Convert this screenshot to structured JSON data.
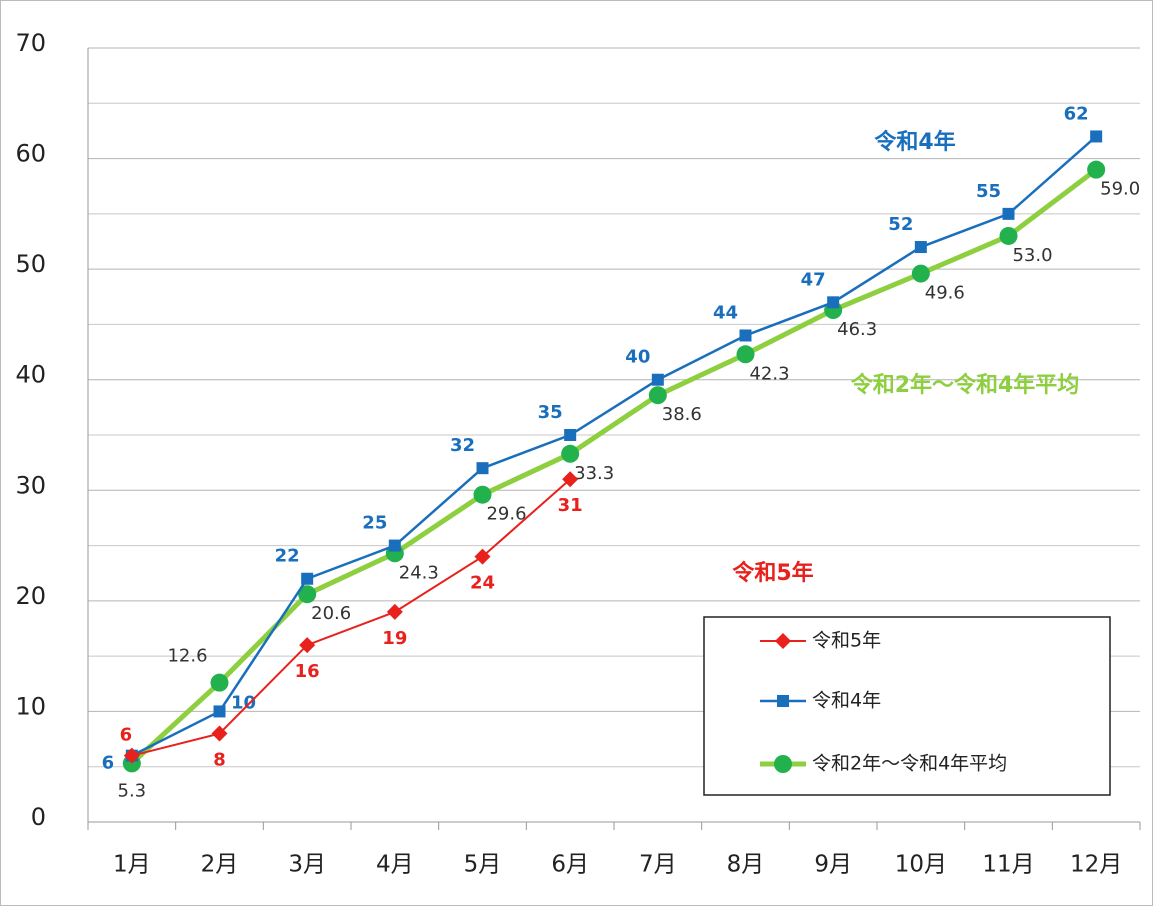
{
  "chart_data": {
    "type": "line",
    "categories": [
      "1月",
      "2月",
      "3月",
      "4月",
      "5月",
      "6月",
      "7月",
      "8月",
      "9月",
      "10月",
      "11月",
      "12月"
    ],
    "series": [
      {
        "name": "令和5年",
        "color": "#e8211d",
        "marker": "diamond",
        "values": [
          6,
          8,
          16,
          19,
          24,
          31,
          null,
          null,
          null,
          null,
          null,
          null
        ]
      },
      {
        "name": "令和4年",
        "color": "#1a6fbd",
        "marker": "square",
        "values": [
          6,
          10,
          22,
          25,
          32,
          35,
          40,
          44,
          47,
          52,
          55,
          62
        ]
      },
      {
        "name": "令和2年～令和4年平均",
        "color": "#8dcf3f",
        "marker": "circle",
        "values": [
          5.3,
          12.6,
          20.6,
          24.3,
          29.6,
          33.3,
          38.6,
          42.3,
          46.3,
          49.6,
          53,
          59
        ],
        "value_labels": [
          "5.3",
          "12.6",
          "20.6",
          "24.3",
          "29.6",
          "33.3",
          "38.6",
          "42.3",
          "46.3",
          "49.6",
          "53.0",
          "59.0"
        ]
      }
    ],
    "annotations": [
      {
        "text": "令和4年",
        "color": "#1a6fbd"
      },
      {
        "text": "令和5年",
        "color": "#e8211d"
      },
      {
        "text": "令和2年～令和4年平均",
        "color": "#8dcf3f"
      }
    ],
    "ylim": [
      0,
      70
    ],
    "yticks": [
      0,
      10,
      20,
      30,
      40,
      50,
      60,
      70
    ],
    "grid": true,
    "legend": "lower right"
  }
}
